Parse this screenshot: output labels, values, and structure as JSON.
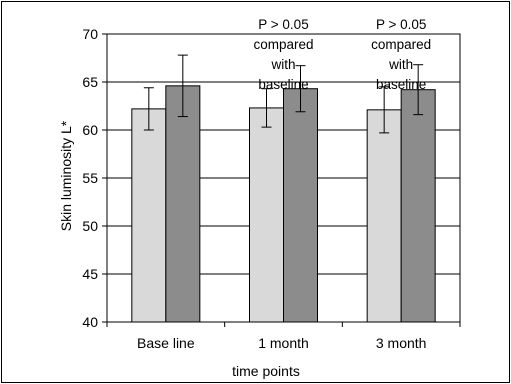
{
  "chart_data": {
    "type": "bar",
    "categories": [
      "Base line",
      "1 month",
      "3 month"
    ],
    "series": [
      {
        "values": [
          62.2,
          62.3,
          62.1
        ],
        "errors": [
          2.2,
          2.0,
          2.4
        ],
        "color": "#d9d9d9"
      },
      {
        "values": [
          64.6,
          64.3,
          64.2
        ],
        "errors": [
          3.2,
          2.4,
          2.6
        ],
        "color": "#8c8c8c"
      }
    ],
    "xlabel": "time points",
    "ylabel": "Skin luminosity L*",
    "ylim": [
      40,
      70
    ],
    "yticks": [
      40,
      45,
      50,
      55,
      60,
      65,
      70
    ],
    "grid": true,
    "annotations": [
      {
        "category": "1 month",
        "lines": [
          "P > 0.05",
          "compared",
          "with",
          "baseline"
        ]
      },
      {
        "category": "3 month",
        "lines": [
          "P > 0.05",
          "compared",
          "with",
          "baseline"
        ]
      }
    ]
  }
}
